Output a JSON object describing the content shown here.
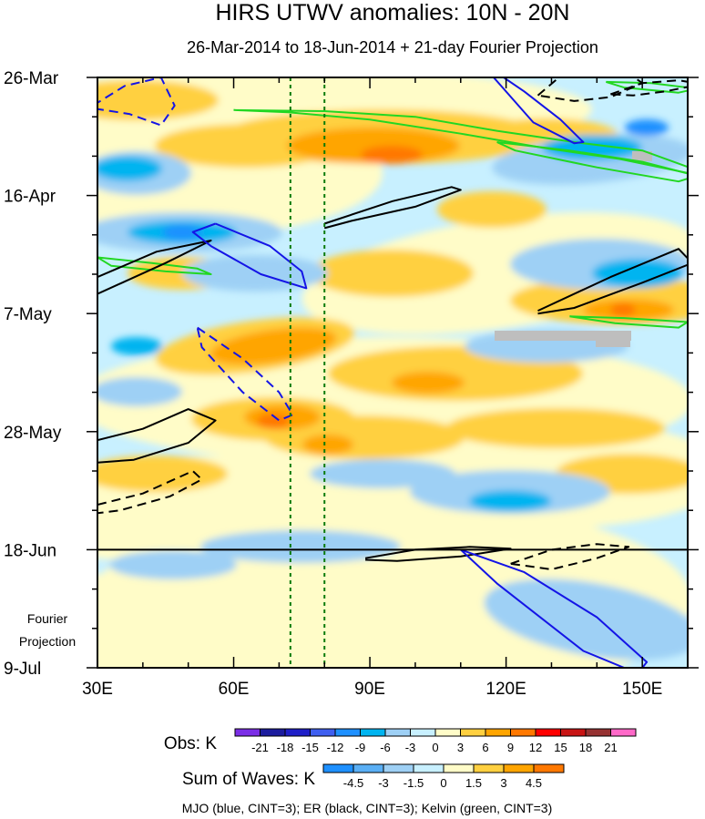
{
  "chart_data": {
    "type": "heatmap",
    "title": "HIRS UTWV anomalies: 10N - 20N",
    "subtitle": "26-Mar-2014 to 18-Jun-2014 + 21-day Fourier Projection",
    "x_axis": {
      "ticks": [
        {
          "value": 30,
          "label": "30E"
        },
        {
          "value": 60,
          "label": "60E"
        },
        {
          "value": 90,
          "label": "90E"
        },
        {
          "value": 120,
          "label": "120E"
        },
        {
          "value": 150,
          "label": "150E"
        }
      ],
      "range": [
        30,
        160
      ]
    },
    "y_axis": {
      "ticks": [
        {
          "day": 0,
          "label": "26-Mar"
        },
        {
          "day": 21,
          "label": "16-Apr"
        },
        {
          "day": 42,
          "label": "7-May"
        },
        {
          "day": 63,
          "label": "28-May"
        },
        {
          "day": 84,
          "label": "18-Jun"
        },
        {
          "day": 105,
          "label": "9-Jul"
        }
      ],
      "range_days": [
        0,
        105
      ],
      "projection_start_day": 84,
      "projection_label_line1": "Fourier",
      "projection_label_line2": "Projection"
    },
    "reference_longitudes": [
      72.5,
      80
    ],
    "obs_legend": {
      "title": "Obs: K",
      "labels": [
        "-21",
        "-18",
        "-15",
        "-12",
        "-9",
        "-6",
        "-3",
        "0",
        "3",
        "6",
        "9",
        "12",
        "15",
        "18",
        "21"
      ],
      "colors": [
        "#7b2ee6",
        "#1c1c9e",
        "#1f1fc8",
        "#3f5ff0",
        "#1e90ff",
        "#00b4f0",
        "#9ed0f5",
        "#c8f0ff",
        "#fffcc8",
        "#ffd040",
        "#ffa500",
        "#ff7800",
        "#ff0000",
        "#c81414",
        "#963232",
        "#ff69c8"
      ]
    },
    "waves_legend": {
      "title": "Sum of Waves: K",
      "labels": [
        "-4.5",
        "-3",
        "-1.5",
        "0",
        "1.5",
        "3",
        "4.5"
      ],
      "colors": [
        "#1e90ff",
        "#5aaff5",
        "#9ed0f5",
        "#c8f0ff",
        "#fffcc8",
        "#ffd040",
        "#ffa500",
        "#ff7800"
      ]
    },
    "contour_caption": "MJO (blue, CINT=3); ER (black, CINT=3); Kelvin (green, CINT=3)",
    "wave_contours": {
      "mjo": [
        {
          "lon": [
            29,
            36,
            44,
            47,
            44,
            37,
            29
          ],
          "day": [
            5,
            1.5,
            0,
            5,
            8.5,
            6.5,
            5.5
          ],
          "dashed": true
        },
        {
          "lon": [
            56,
            68,
            75,
            76,
            66,
            55,
            51,
            56
          ],
          "day": [
            26,
            30,
            34.5,
            37.5,
            35,
            30,
            27.5,
            26
          ],
          "dashed": false
        },
        {
          "lon": [
            52,
            62,
            70,
            73,
            70,
            62,
            53,
            52
          ],
          "day": [
            44.5,
            50,
            56,
            60,
            61,
            56,
            48,
            44.5
          ],
          "dashed": true
        },
        {
          "lon": [
            114,
            124,
            132,
            137,
            135,
            126,
            114
          ],
          "day": [
            -3,
            2.5,
            7.5,
            11.5,
            11.7,
            8,
            -3
          ],
          "dashed": false
        },
        {
          "lon": [
            110,
            124,
            140,
            151,
            149,
            137,
            118,
            110
          ],
          "day": [
            84,
            88,
            96,
            104,
            106,
            102,
            90,
            84
          ],
          "dashed": false
        }
      ],
      "er": [
        {
          "lon": [
            30,
            43,
            55,
            45,
            30
          ],
          "day": [
            35.5,
            31,
            29,
            33,
            38.5
          ],
          "dashed": false
        },
        {
          "lon": [
            80,
            95,
            108,
            110,
            100,
            86,
            80
          ],
          "day": [
            26,
            22,
            19.5,
            20,
            23,
            25.5,
            26.8
          ],
          "dashed": false
        },
        {
          "lon": [
            127,
            143,
            158,
            161,
            150,
            135,
            127
          ],
          "day": [
            41.5,
            35.5,
            30.5,
            33,
            36.5,
            41,
            42
          ],
          "dashed": false
        },
        {
          "lon": [
            30,
            40,
            50,
            56,
            50,
            38,
            30
          ],
          "day": [
            64.5,
            62.5,
            59,
            61,
            65,
            68,
            68.5
          ],
          "dashed": false
        },
        {
          "lon": [
            30,
            40,
            51,
            53,
            46,
            35,
            30
          ],
          "day": [
            76,
            74,
            70,
            71.5,
            74.5,
            77,
            77.5
          ],
          "dashed": true
        },
        {
          "lon": [
            89,
            100,
            112,
            121,
            110,
            96,
            89
          ],
          "day": [
            85.5,
            84,
            83.5,
            83.8,
            85.2,
            86,
            85.8
          ],
          "dashed": false
        },
        {
          "lon": [
            121,
            130,
            140,
            147,
            140,
            130,
            121
          ],
          "day": [
            86.5,
            84,
            83,
            83.5,
            85.5,
            87.5,
            86.5
          ],
          "dashed": true
        },
        {
          "lon": [
            127,
            136,
            145,
            150,
            143,
            135,
            127
          ],
          "day": [
            3.2,
            -3,
            -1.8,
            1,
            3.5,
            4.2,
            3.2
          ],
          "dashed": true
        },
        {
          "lon": [
            143,
            150,
            158,
            163,
            155,
            148,
            143
          ],
          "day": [
            3,
            1,
            0.5,
            1.2,
            2.5,
            3.2,
            3
          ],
          "dashed": true
        }
      ],
      "kelvin": [
        {
          "lon": [
            60,
            80,
            100,
            118,
            135,
            150,
            162,
            160,
            145,
            128,
            110,
            90,
            72,
            60
          ],
          "day": [
            5.8,
            6,
            7,
            9.5,
            11.5,
            13,
            16.5,
            17,
            14.5,
            12.5,
            10,
            7.5,
            6.2,
            5.8
          ],
          "dashed": false
        },
        {
          "lon": [
            118,
            134,
            150,
            162,
            158,
            140,
            122,
            118
          ],
          "day": [
            11.5,
            13,
            15,
            17.5,
            18.5,
            16,
            13,
            11.5
          ],
          "dashed": false
        },
        {
          "lon": [
            30,
            42,
            52,
            55,
            45,
            33,
            30
          ],
          "day": [
            32,
            33,
            34,
            35,
            34.5,
            33.5,
            32
          ],
          "dashed": false
        },
        {
          "lon": [
            134,
            146,
            160,
            158,
            144,
            134
          ],
          "day": [
            42.5,
            42.8,
            43.5,
            44.5,
            43.7,
            42.5
          ],
          "dashed": false
        },
        {
          "lon": [
            142,
            152,
            162,
            158,
            146,
            142
          ],
          "day": [
            0.8,
            1,
            2,
            2.7,
            1.8,
            0.8
          ],
          "dashed": false
        }
      ]
    }
  }
}
